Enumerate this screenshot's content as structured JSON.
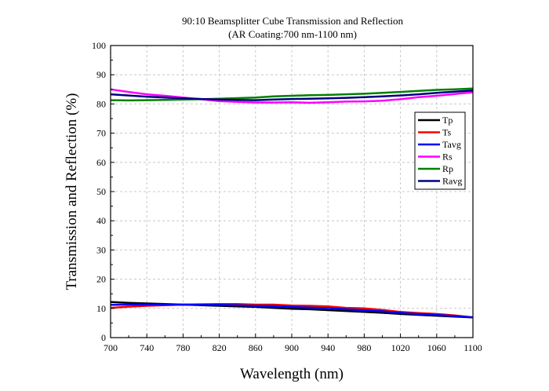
{
  "chart_data": {
    "type": "line",
    "title": "90:10 Beamsplitter Cube Transmission and Reflection",
    "subtitle": "(AR Coating:700 nm-1100 nm)",
    "xlabel": "Wavelength (nm)",
    "ylabel": "Transmission and Reflection (%)",
    "xlim": [
      700,
      1100
    ],
    "ylim": [
      0,
      100
    ],
    "xticks": [
      700,
      740,
      780,
      820,
      860,
      900,
      940,
      980,
      1020,
      1060,
      1100
    ],
    "yticks": [
      0,
      10,
      20,
      30,
      40,
      50,
      60,
      70,
      80,
      90,
      100
    ],
    "grid": true,
    "legend_position": "right",
    "x": [
      700,
      720,
      740,
      760,
      780,
      800,
      820,
      840,
      860,
      880,
      900,
      920,
      940,
      960,
      980,
      1000,
      1020,
      1040,
      1060,
      1080,
      1100
    ],
    "series": [
      {
        "name": "Tp",
        "color": "#000000",
        "values": [
          12.2,
          11.9,
          11.7,
          11.5,
          11.3,
          11.1,
          10.9,
          10.7,
          10.5,
          10.2,
          9.9,
          9.7,
          9.4,
          9.1,
          8.8,
          8.5,
          8.1,
          7.8,
          7.5,
          7.2,
          6.9
        ]
      },
      {
        "name": "Ts",
        "color": "#ff0000",
        "values": [
          10.2,
          10.6,
          10.9,
          11.1,
          11.3,
          11.4,
          11.5,
          11.5,
          11.3,
          11.3,
          11.0,
          10.9,
          10.7,
          10.2,
          10.0,
          9.5,
          8.8,
          8.4,
          8.1,
          7.6,
          6.9
        ]
      },
      {
        "name": "Tavg",
        "color": "#0000ff",
        "values": [
          11.2,
          11.3,
          11.3,
          11.3,
          11.3,
          11.3,
          11.2,
          11.1,
          10.9,
          10.8,
          10.5,
          10.3,
          10.1,
          9.7,
          9.4,
          9.0,
          8.5,
          8.1,
          7.8,
          7.4,
          6.9
        ]
      },
      {
        "name": "Rs",
        "color": "#ff00ff",
        "values": [
          85.0,
          84.1,
          83.3,
          82.8,
          82.2,
          81.6,
          81.0,
          80.7,
          80.5,
          80.5,
          80.6,
          80.4,
          80.6,
          80.8,
          80.9,
          81.1,
          81.6,
          82.3,
          82.8,
          83.4,
          84.0
        ]
      },
      {
        "name": "Rp",
        "color": "#008000",
        "values": [
          81.3,
          81.2,
          81.3,
          81.4,
          81.5,
          81.6,
          81.8,
          82.0,
          82.2,
          82.6,
          82.8,
          83.0,
          83.1,
          83.3,
          83.5,
          83.8,
          84.1,
          84.5,
          84.8,
          85.0,
          85.3
        ]
      },
      {
        "name": "Ravg",
        "color": "#000080",
        "values": [
          83.3,
          82.9,
          82.5,
          82.2,
          81.9,
          81.7,
          81.5,
          81.4,
          81.3,
          81.5,
          81.7,
          81.8,
          81.9,
          82.1,
          82.3,
          82.6,
          82.9,
          83.3,
          83.8,
          84.2,
          84.6
        ]
      }
    ]
  }
}
